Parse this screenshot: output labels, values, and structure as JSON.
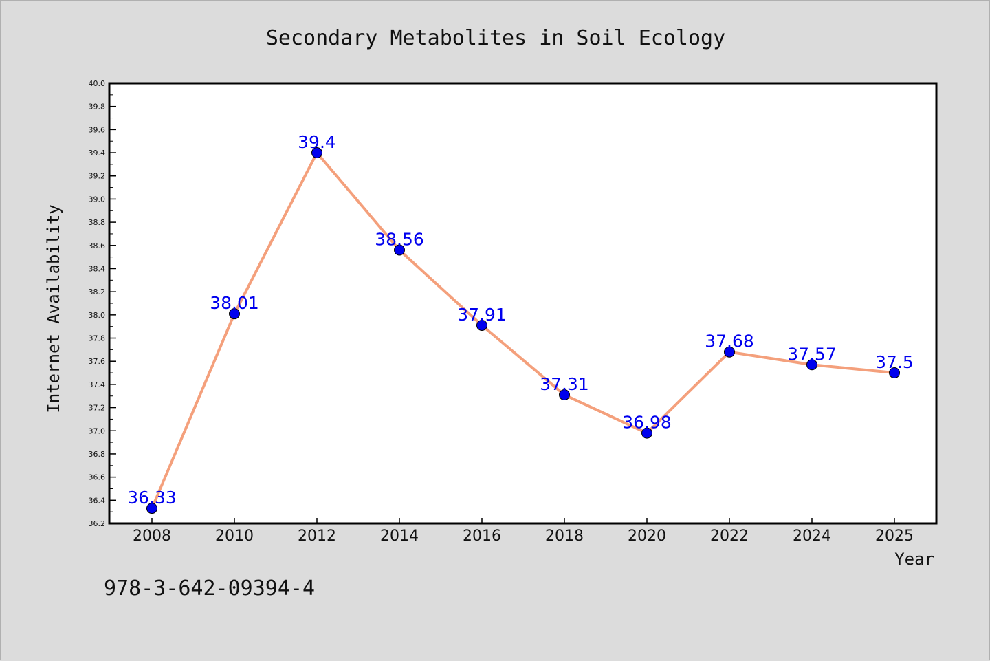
{
  "chart_data": {
    "type": "line",
    "title": "Secondary Metabolites in Soil Ecology",
    "xlabel": "Year",
    "ylabel": "Internet Availability",
    "x": [
      "2008",
      "2010",
      "2012",
      "2014",
      "2016",
      "2018",
      "2020",
      "2022",
      "2024",
      "2025"
    ],
    "series": [
      {
        "values": [
          36.33,
          38.01,
          39.4,
          38.56,
          37.91,
          37.31,
          36.98,
          37.68,
          37.57,
          37.5
        ],
        "data_labels": [
          "36.33",
          "38.01",
          "39.4",
          "38.56",
          "37.91",
          "37.31",
          "36.98",
          "37.68",
          "37.57",
          "37.5"
        ],
        "line_color": "#f4a07c",
        "marker_color": "#0000ee"
      }
    ],
    "ylim": [
      36.2,
      40.0
    ],
    "yticks": [
      "36.2",
      "36.4",
      "36.6",
      "36.8",
      "37.0",
      "37.2",
      "37.4",
      "37.6",
      "37.8",
      "38.0",
      "38.2",
      "38.4",
      "38.6",
      "38.8",
      "39.0",
      "39.2",
      "39.4",
      "39.6",
      "39.8",
      "40.0"
    ],
    "grid": false,
    "legend": "none"
  },
  "footer": {
    "isbn": "978-3-642-09394-4"
  },
  "colors": {
    "background": "#dcdcdc",
    "plot_background": "#ffffff",
    "axis": "#000000"
  }
}
